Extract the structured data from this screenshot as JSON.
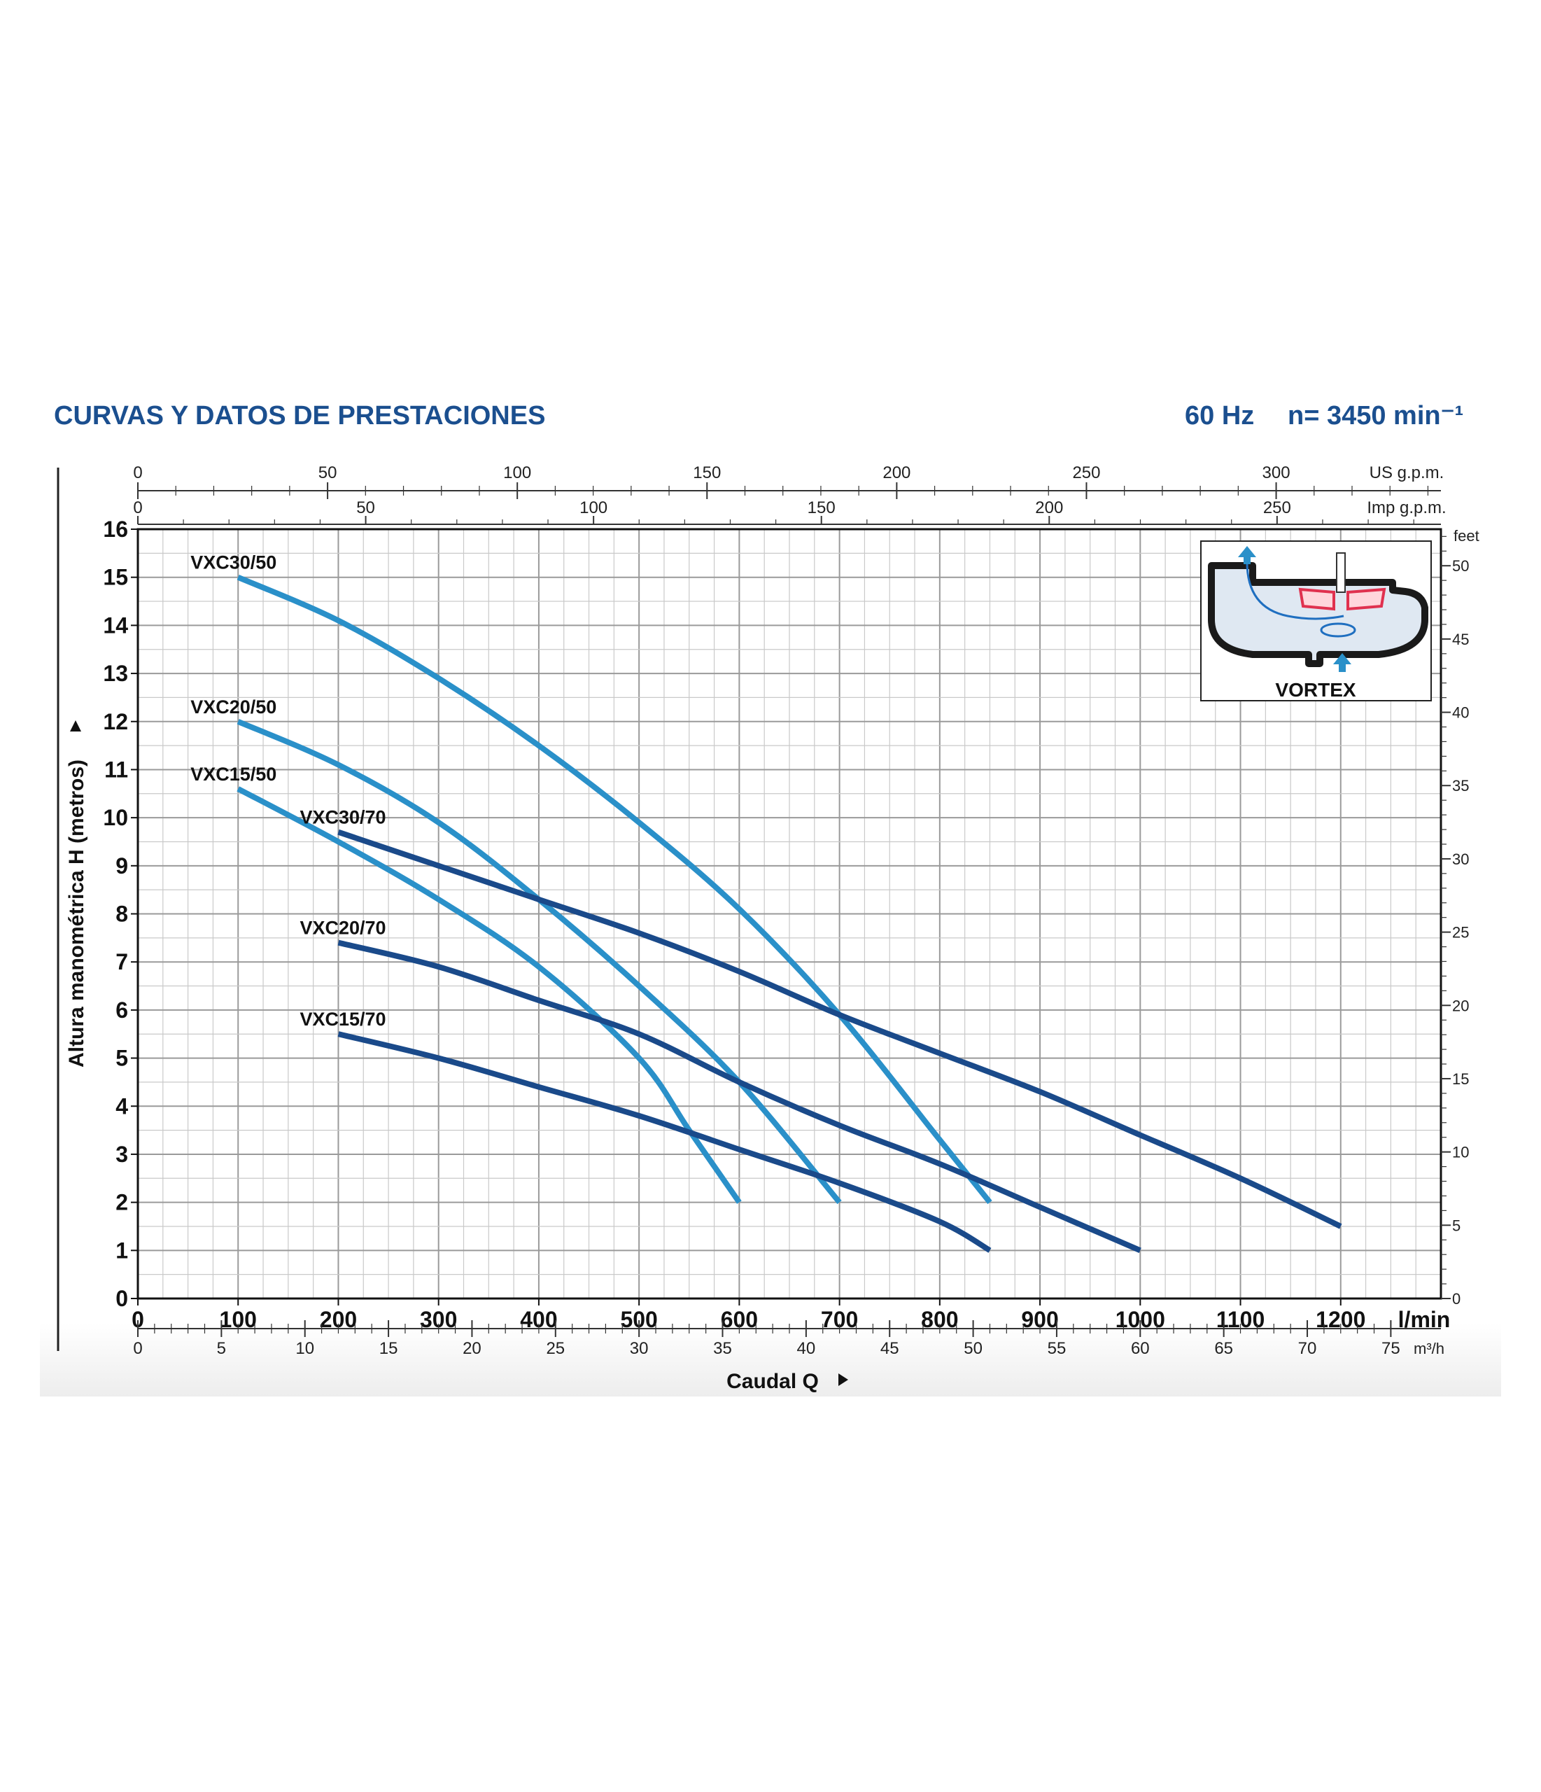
{
  "header": {
    "title": "CURVAS Y DATOS DE PRESTACIONES",
    "freq": "60 Hz",
    "speed": "n= 3450 min⁻¹"
  },
  "chart_data": {
    "type": "line",
    "xlabel": "Caudal Q",
    "ylabel": "Altura manométrica H (metros)",
    "x_unit": "l/min",
    "x_ticks": [
      "0",
      "100",
      "200",
      "300",
      "400",
      "500",
      "600",
      "700",
      "800",
      "900",
      "1000",
      "1100",
      "1200"
    ],
    "xlim": [
      0,
      1300
    ],
    "y_ticks": [
      "0",
      "1",
      "2",
      "3",
      "4",
      "5",
      "6",
      "7",
      "8",
      "9",
      "10",
      "11",
      "12",
      "13",
      "14",
      "15",
      "16"
    ],
    "ylim": [
      0,
      16
    ],
    "grid": true,
    "secondary_axes": {
      "us_gpm": {
        "unit": "US g.p.m.",
        "ticks": [
          "0",
          "50",
          "100",
          "150",
          "200",
          "250",
          "300"
        ]
      },
      "imp_gpm": {
        "unit": "Imp g.p.m.",
        "ticks": [
          "0",
          "50",
          "100",
          "150",
          "200",
          "250"
        ]
      },
      "m3h": {
        "unit": "m³/h",
        "ticks": [
          "0",
          "5",
          "10",
          "15",
          "20",
          "25",
          "30",
          "35",
          "40",
          "45",
          "50",
          "55",
          "60",
          "65",
          "70",
          "75"
        ]
      },
      "feet": {
        "unit": "feet",
        "ticks": [
          "0",
          "5",
          "10",
          "15",
          "20",
          "25",
          "30",
          "35",
          "40",
          "45",
          "50"
        ]
      }
    },
    "series": [
      {
        "name": "VXC30/50",
        "color": "#2a90c9",
        "points": [
          [
            100,
            15.0
          ],
          [
            200,
            14.1
          ],
          [
            300,
            12.9
          ],
          [
            400,
            11.5
          ],
          [
            500,
            9.9
          ],
          [
            600,
            8.1
          ],
          [
            700,
            5.9
          ],
          [
            800,
            3.3
          ],
          [
            850,
            2.0
          ]
        ]
      },
      {
        "name": "VXC20/50",
        "color": "#2a90c9",
        "points": [
          [
            100,
            12.0
          ],
          [
            200,
            11.1
          ],
          [
            300,
            9.9
          ],
          [
            400,
            8.3
          ],
          [
            500,
            6.5
          ],
          [
            600,
            4.5
          ],
          [
            700,
            2.0
          ]
        ]
      },
      {
        "name": "VXC15/50",
        "color": "#2a90c9",
        "points": [
          [
            100,
            10.6
          ],
          [
            200,
            9.5
          ],
          [
            300,
            8.3
          ],
          [
            400,
            6.9
          ],
          [
            500,
            5.0
          ],
          [
            550,
            3.5
          ],
          [
            600,
            2.0
          ]
        ]
      },
      {
        "name": "VXC30/70",
        "color": "#1a4a8a",
        "points": [
          [
            200,
            9.7
          ],
          [
            300,
            9.0
          ],
          [
            400,
            8.3
          ],
          [
            500,
            7.6
          ],
          [
            600,
            6.8
          ],
          [
            700,
            5.9
          ],
          [
            800,
            5.1
          ],
          [
            900,
            4.3
          ],
          [
            1000,
            3.4
          ],
          [
            1100,
            2.5
          ],
          [
            1200,
            1.5
          ]
        ]
      },
      {
        "name": "VXC20/70",
        "color": "#1a4a8a",
        "points": [
          [
            200,
            7.4
          ],
          [
            300,
            6.9
          ],
          [
            400,
            6.2
          ],
          [
            500,
            5.5
          ],
          [
            600,
            4.5
          ],
          [
            700,
            3.6
          ],
          [
            800,
            2.8
          ],
          [
            900,
            1.9
          ],
          [
            1000,
            1.0
          ]
        ]
      },
      {
        "name": "VXC15/70",
        "color": "#1a4a8a",
        "points": [
          [
            200,
            5.5
          ],
          [
            300,
            5.0
          ],
          [
            400,
            4.4
          ],
          [
            500,
            3.8
          ],
          [
            600,
            3.1
          ],
          [
            700,
            2.4
          ],
          [
            800,
            1.6
          ],
          [
            850,
            1.0
          ]
        ]
      }
    ]
  },
  "inset": {
    "label": "VORTEX"
  }
}
